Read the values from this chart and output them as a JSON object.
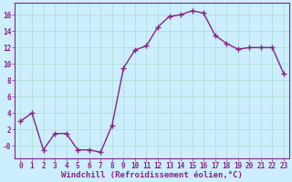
{
  "x": [
    0,
    1,
    2,
    3,
    4,
    5,
    6,
    7,
    8,
    9,
    10,
    11,
    12,
    13,
    14,
    15,
    16,
    17,
    18,
    19,
    20,
    21,
    22,
    23
  ],
  "y": [
    3,
    4,
    -0.5,
    1.5,
    1.5,
    -0.5,
    -0.5,
    -0.8,
    2.5,
    9.5,
    11.7,
    12.2,
    14.5,
    15.8,
    16.0,
    16.5,
    16.2,
    13.5,
    12.5,
    11.8,
    12.0,
    12.0,
    12.0,
    8.8
  ],
  "line_color": "#882288",
  "marker": "+",
  "marker_size": 4,
  "linewidth": 1.0,
  "xlabel": "Windchill (Refroidissement éolien,°C)",
  "xlabel_fontsize": 6.5,
  "ylim": [
    -1.5,
    17.5
  ],
  "xlim": [
    -0.5,
    23.5
  ],
  "yticks": [
    "-0",
    2,
    4,
    6,
    8,
    10,
    12,
    14,
    16
  ],
  "ytick_vals": [
    -0.0,
    2,
    4,
    6,
    8,
    10,
    12,
    14,
    16
  ],
  "ytick_labels": [
    "-0",
    "2",
    "4",
    "6",
    "8",
    "10",
    "12",
    "14",
    "16"
  ],
  "xticks": [
    0,
    1,
    2,
    3,
    4,
    5,
    6,
    7,
    8,
    9,
    10,
    11,
    12,
    13,
    14,
    15,
    16,
    17,
    18,
    19,
    20,
    21,
    22,
    23
  ],
  "tick_fontsize": 5.5,
  "background_color": "#cceeff",
  "grid_color": "#aaddcc",
  "line_label_color": "#882288"
}
